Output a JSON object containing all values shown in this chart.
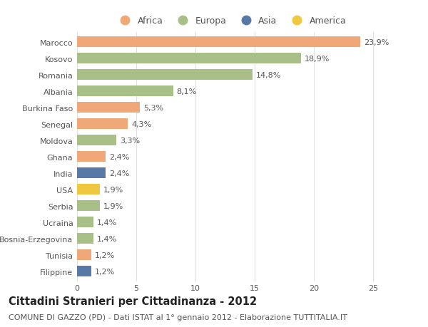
{
  "countries": [
    "Marocco",
    "Kosovo",
    "Romania",
    "Albania",
    "Burkina Faso",
    "Senegal",
    "Moldova",
    "Ghana",
    "India",
    "USA",
    "Serbia",
    "Ucraina",
    "Bosnia-Erzegovina",
    "Tunisia",
    "Filippine"
  ],
  "values": [
    23.9,
    18.9,
    14.8,
    8.1,
    5.3,
    4.3,
    3.3,
    2.4,
    2.4,
    1.9,
    1.9,
    1.4,
    1.4,
    1.2,
    1.2
  ],
  "labels": [
    "23,9%",
    "18,9%",
    "14,8%",
    "8,1%",
    "5,3%",
    "4,3%",
    "3,3%",
    "2,4%",
    "2,4%",
    "1,9%",
    "1,9%",
    "1,4%",
    "1,4%",
    "1,2%",
    "1,2%"
  ],
  "continents": [
    "Africa",
    "Europa",
    "Europa",
    "Europa",
    "Africa",
    "Africa",
    "Europa",
    "Africa",
    "Asia",
    "America",
    "Europa",
    "Europa",
    "Europa",
    "Africa",
    "Asia"
  ],
  "continent_colors": {
    "Africa": "#F0A878",
    "Europa": "#A8BF88",
    "Asia": "#5878A8",
    "America": "#F0C840"
  },
  "legend_items": [
    "Africa",
    "Europa",
    "Asia",
    "America"
  ],
  "title": "Cittadini Stranieri per Cittadinanza - 2012",
  "subtitle": "COMUNE DI GAZZO (PD) - Dati ISTAT al 1° gennaio 2012 - Elaborazione TUTTITALIA.IT",
  "xlim": [
    0,
    26
  ],
  "xticks": [
    0,
    5,
    10,
    15,
    20,
    25
  ],
  "background_color": "#ffffff",
  "grid_color": "#e0e0e0",
  "bar_height": 0.65,
  "label_fontsize": 8.0,
  "title_fontsize": 10.5,
  "subtitle_fontsize": 8.0,
  "legend_fontsize": 9.0
}
